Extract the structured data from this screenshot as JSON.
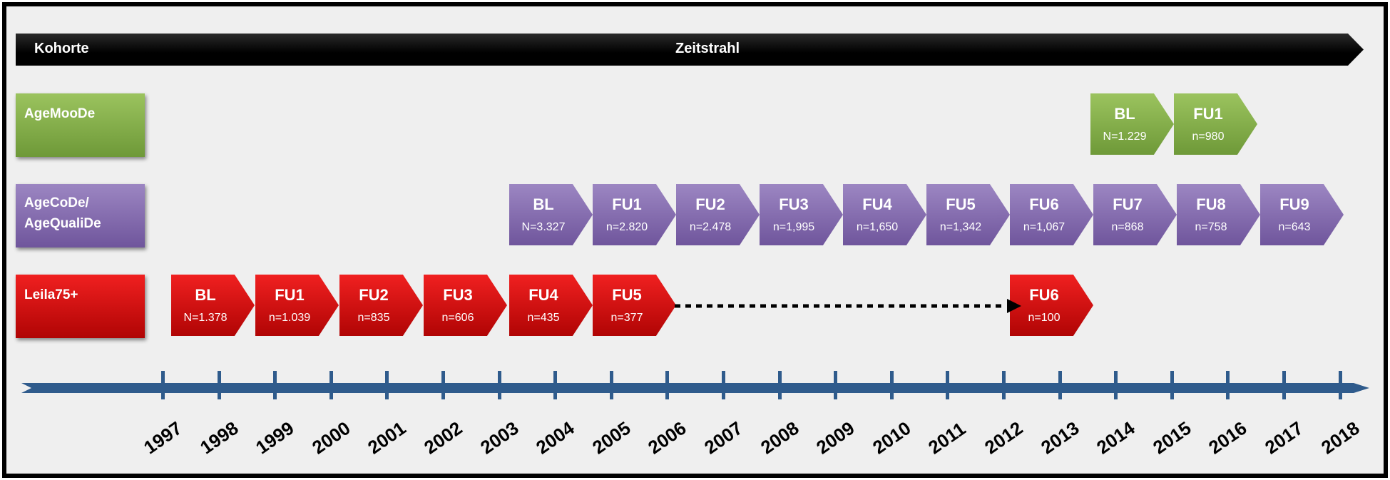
{
  "header": {
    "left_label": "Kohorte",
    "center_label": "Zeitstrahl"
  },
  "colors": {
    "green": "#7da545",
    "purple": "#7b63a8",
    "red": "#d00a0a",
    "axis": "#2f5b8c"
  },
  "cohorts": [
    {
      "name": "AgeMooDe",
      "color": "green"
    },
    {
      "name_line1": "AgeCoDe/",
      "name_line2": "AgeQualiDe",
      "color": "purple"
    },
    {
      "name": "Leila75+",
      "color": "red"
    }
  ],
  "agemoode": [
    {
      "label": "BL",
      "n": "N=1.229"
    },
    {
      "label": "FU1",
      "n": "n=980"
    }
  ],
  "agecode": [
    {
      "label": "BL",
      "n": "N=3.327"
    },
    {
      "label": "FU1",
      "n": "n=2.820"
    },
    {
      "label": "FU2",
      "n": "n=2.478"
    },
    {
      "label": "FU3",
      "n": "n=1,995"
    },
    {
      "label": "FU4",
      "n": "n=1,650"
    },
    {
      "label": "FU5",
      "n": "n=1,342"
    },
    {
      "label": "FU6",
      "n": "n=1,067"
    },
    {
      "label": "FU7",
      "n": "n=868"
    },
    {
      "label": "FU8",
      "n": "n=758"
    },
    {
      "label": "FU9",
      "n": "n=643"
    }
  ],
  "leila": [
    {
      "label": "BL",
      "n": "N=1.378"
    },
    {
      "label": "FU1",
      "n": "n=1.039"
    },
    {
      "label": "FU2",
      "n": "n=835"
    },
    {
      "label": "FU3",
      "n": "n=606"
    },
    {
      "label": "FU4",
      "n": "n=435"
    },
    {
      "label": "FU5",
      "n": "n=377"
    },
    {
      "label": "FU6",
      "n": "n=100"
    }
  ],
  "years": [
    "1997",
    "1998",
    "1999",
    "2000",
    "2001",
    "2002",
    "2003",
    "2004",
    "2005",
    "2006",
    "2007",
    "2008",
    "2009",
    "2010",
    "2011",
    "2012",
    "2013",
    "2014",
    "2015",
    "2016",
    "2017",
    "2018"
  ]
}
